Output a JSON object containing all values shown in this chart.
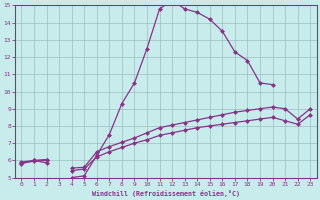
{
  "xlabel": "Windchill (Refroidissement éolien,°C)",
  "xlim": [
    -0.5,
    23.5
  ],
  "ylim": [
    5,
    15
  ],
  "yticks": [
    5,
    6,
    7,
    8,
    9,
    10,
    11,
    12,
    13,
    14,
    15
  ],
  "xticks": [
    0,
    1,
    2,
    3,
    4,
    5,
    6,
    7,
    8,
    9,
    10,
    11,
    12,
    13,
    14,
    15,
    16,
    17,
    18,
    19,
    20,
    21,
    22,
    23
  ],
  "bg_color": "#c8ecec",
  "line_color": "#883388",
  "grid_color": "#9bbfbf",
  "series1_x": [
    0,
    1,
    2,
    3,
    4,
    5,
    6,
    7,
    8,
    9,
    10,
    11,
    12,
    13,
    14,
    15,
    16,
    17,
    18,
    19,
    20
  ],
  "series1_y": [
    5.8,
    6.0,
    5.85,
    null,
    5.0,
    5.1,
    6.3,
    7.5,
    9.3,
    10.5,
    12.5,
    14.8,
    15.3,
    14.8,
    14.6,
    14.2,
    13.5,
    12.3,
    11.8,
    10.5,
    10.4
  ],
  "series2_x": [
    0,
    1,
    2,
    3,
    4,
    5,
    6,
    7,
    8,
    9,
    10,
    11,
    12,
    13,
    14,
    15,
    16,
    17,
    18,
    19,
    20,
    21,
    22,
    23
  ],
  "series2_y": [
    5.85,
    5.95,
    6.0,
    null,
    5.4,
    5.5,
    6.2,
    6.5,
    6.75,
    7.0,
    7.2,
    7.45,
    7.6,
    7.75,
    7.9,
    8.0,
    8.1,
    8.2,
    8.3,
    8.4,
    8.5,
    8.3,
    8.1,
    8.65
  ],
  "series3_x": [
    0,
    1,
    2,
    3,
    4,
    5,
    6,
    7,
    8,
    9,
    10,
    11,
    12,
    13,
    14,
    15,
    16,
    17,
    18,
    19,
    20,
    21,
    22,
    23
  ],
  "series3_y": [
    5.9,
    6.0,
    6.05,
    null,
    5.55,
    5.6,
    6.5,
    6.8,
    7.05,
    7.3,
    7.6,
    7.9,
    8.05,
    8.2,
    8.35,
    8.5,
    8.65,
    8.8,
    8.9,
    9.0,
    9.1,
    9.0,
    8.4,
    9.0
  ],
  "lw": 0.9,
  "ms": 2.5
}
